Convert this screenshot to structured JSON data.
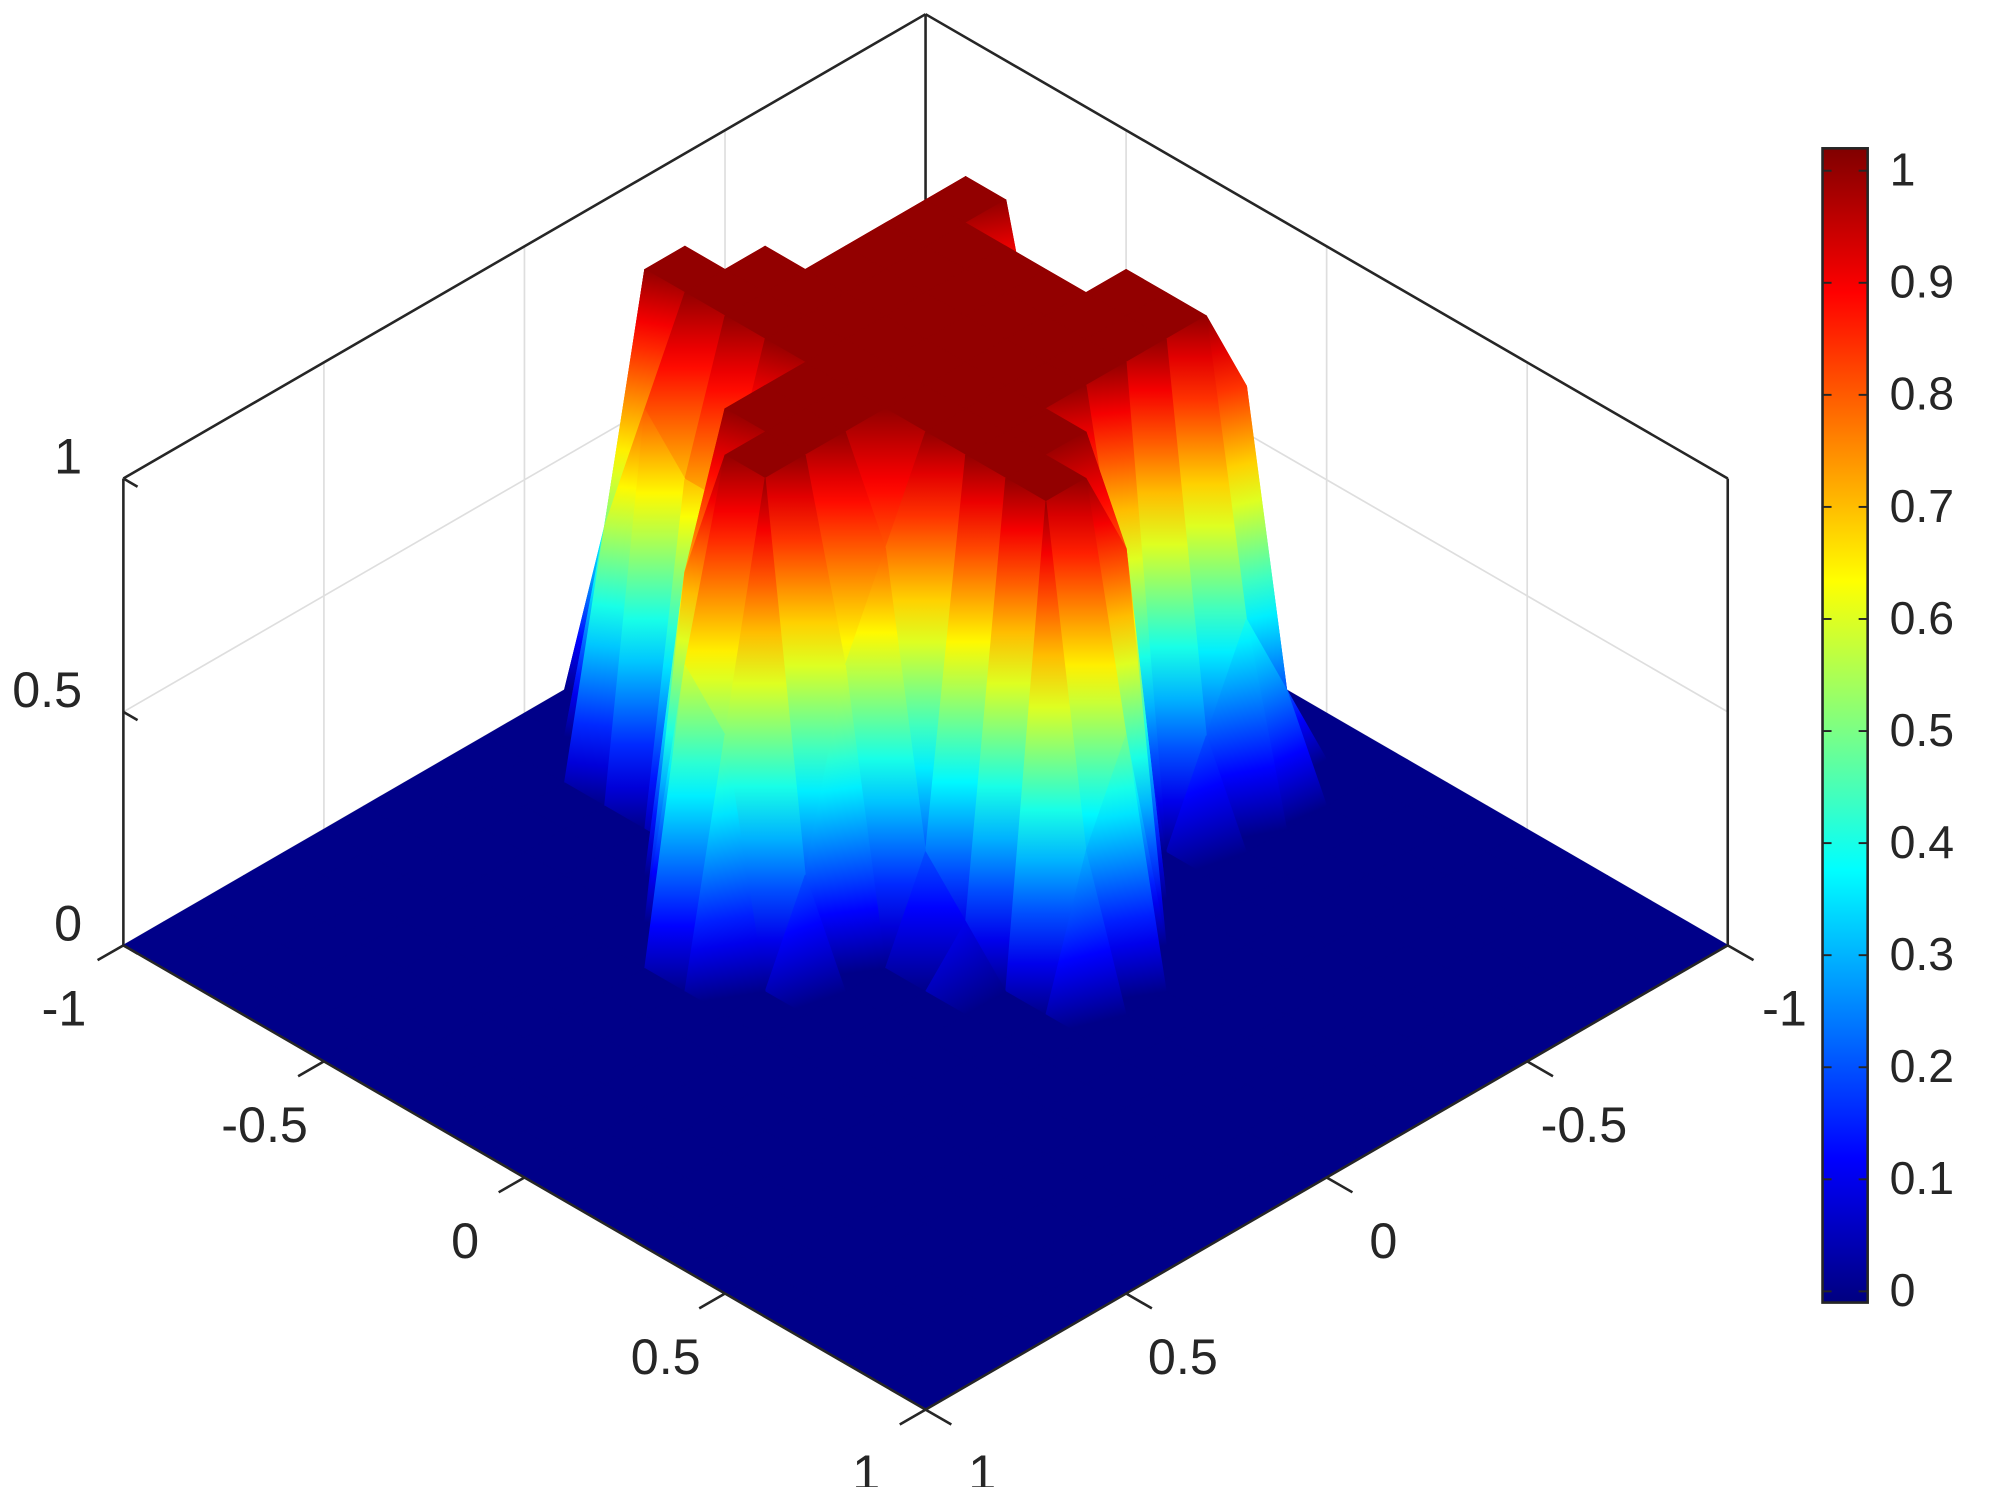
{
  "chart_data": {
    "type": "surface",
    "colormap": "jet",
    "grid": true,
    "x": [
      -1,
      -0.9,
      -0.8,
      -0.7,
      -0.6,
      -0.5,
      -0.4,
      -0.3,
      -0.2,
      -0.1,
      0,
      0.1,
      0.2,
      0.3,
      0.4,
      0.5,
      0.6,
      0.7,
      0.8,
      0.9,
      1
    ],
    "y": [
      -1,
      -0.9,
      -0.8,
      -0.7,
      -0.6,
      -0.5,
      -0.4,
      -0.3,
      -0.2,
      -0.1,
      0,
      0.1,
      0.2,
      0.3,
      0.4,
      0.5,
      0.6,
      0.7,
      0.8,
      0.9,
      1
    ],
    "z": [
      [
        0,
        0,
        0,
        0,
        0,
        0,
        0,
        0,
        0,
        0,
        0,
        0,
        0,
        0,
        0,
        0,
        0,
        0,
        0,
        0,
        0
      ],
      [
        0,
        0,
        0,
        0,
        0,
        0,
        0,
        0,
        0,
        0,
        0,
        0,
        0,
        0,
        0,
        0,
        0,
        0,
        0,
        0,
        0
      ],
      [
        0,
        0,
        0,
        0.3,
        0.5,
        0.2,
        0,
        0,
        0.2,
        0.8,
        0.8,
        0.2,
        0,
        0,
        0,
        0,
        0,
        0,
        0,
        0,
        0
      ],
      [
        0,
        0,
        0,
        0.9,
        1,
        1,
        0.6,
        0.4,
        1,
        1,
        1,
        0.4,
        0,
        0,
        0,
        0,
        0,
        0,
        0,
        0,
        0
      ],
      [
        0,
        0,
        0,
        0.9,
        1,
        1,
        1,
        1,
        1,
        1,
        1,
        0.2,
        0,
        0,
        0,
        0,
        0,
        0,
        0,
        0,
        0
      ],
      [
        0,
        0,
        0,
        0.5,
        1,
        1,
        1,
        1,
        1,
        1,
        1,
        0,
        0,
        0,
        0,
        0,
        0,
        0,
        0,
        0,
        0
      ],
      [
        0,
        0,
        0,
        0.2,
        1,
        1,
        1,
        1,
        1,
        1,
        1,
        0.5,
        0,
        0,
        0,
        0,
        0,
        0,
        0,
        0,
        0
      ],
      [
        0,
        0,
        0.2,
        1,
        1,
        1,
        1,
        1,
        1,
        1,
        1,
        1,
        0.8,
        0,
        0,
        0,
        0,
        0,
        0,
        0,
        0
      ],
      [
        0,
        0.1,
        1,
        1,
        1,
        1,
        1,
        1,
        1,
        1,
        1,
        1,
        1,
        0.5,
        0,
        0,
        0,
        0,
        0,
        0,
        0
      ],
      [
        0,
        0.4,
        1,
        1,
        1,
        1,
        1,
        1,
        1,
        1,
        1,
        1,
        1,
        0.3,
        0,
        0,
        0,
        0,
        0,
        0,
        0
      ],
      [
        0,
        0,
        0.5,
        0.8,
        0.7,
        0.7,
        1,
        1,
        1,
        0.8,
        0.2,
        0.1,
        0,
        0,
        0,
        0,
        0,
        0,
        0,
        0,
        0
      ],
      [
        0,
        0,
        0,
        0,
        0,
        0,
        1,
        1,
        1,
        0.6,
        0,
        0,
        0,
        0,
        0,
        0,
        0,
        0,
        0,
        0,
        0
      ],
      [
        0,
        0,
        0,
        0,
        0,
        0,
        0.7,
        1,
        1,
        0.2,
        0,
        0,
        0,
        0,
        0,
        0,
        0,
        0,
        0,
        0,
        0
      ],
      [
        0,
        0,
        0,
        0,
        0,
        0,
        0,
        0.6,
        0.5,
        0,
        0,
        0,
        0,
        0,
        0,
        0,
        0,
        0,
        0,
        0,
        0
      ],
      [
        0,
        0,
        0,
        0,
        0,
        0,
        0,
        0,
        0,
        0,
        0,
        0,
        0,
        0,
        0,
        0,
        0,
        0,
        0,
        0,
        0
      ],
      [
        0,
        0,
        0,
        0,
        0,
        0,
        0,
        0,
        0,
        0,
        0,
        0,
        0,
        0,
        0,
        0,
        0,
        0,
        0,
        0,
        0
      ],
      [
        0,
        0,
        0,
        0,
        0,
        0,
        0,
        0,
        0,
        0,
        0,
        0,
        0,
        0,
        0,
        0,
        0,
        0,
        0,
        0,
        0
      ],
      [
        0,
        0,
        0,
        0,
        0,
        0,
        0,
        0,
        0,
        0,
        0,
        0,
        0,
        0,
        0,
        0,
        0,
        0,
        0,
        0,
        0
      ],
      [
        0,
        0,
        0,
        0,
        0,
        0,
        0,
        0,
        0,
        0,
        0,
        0,
        0,
        0,
        0,
        0,
        0,
        0,
        0,
        0,
        0
      ],
      [
        0,
        0,
        0,
        0,
        0,
        0,
        0,
        0,
        0,
        0,
        0,
        0,
        0,
        0,
        0,
        0,
        0,
        0,
        0,
        0,
        0
      ],
      [
        0,
        0,
        0,
        0,
        0,
        0,
        0,
        0,
        0,
        0,
        0,
        0,
        0,
        0,
        0,
        0,
        0,
        0,
        0,
        0,
        0
      ]
    ],
    "xlim": [
      -1,
      1
    ],
    "ylim": [
      -1,
      1
    ],
    "zlim": [
      0,
      1
    ],
    "xticks": [
      -1,
      -0.5,
      0,
      0.5,
      1
    ],
    "yticks": [
      -1,
      -0.5,
      0,
      0.5,
      1
    ],
    "zticks": [
      0,
      0.5,
      1
    ],
    "clim": [
      -0.01,
      1.02
    ],
    "colorbar_ticks": [
      0,
      0.1,
      0.2,
      0.3,
      0.4,
      0.5,
      0.6,
      0.7,
      0.8,
      0.9,
      1
    ]
  }
}
